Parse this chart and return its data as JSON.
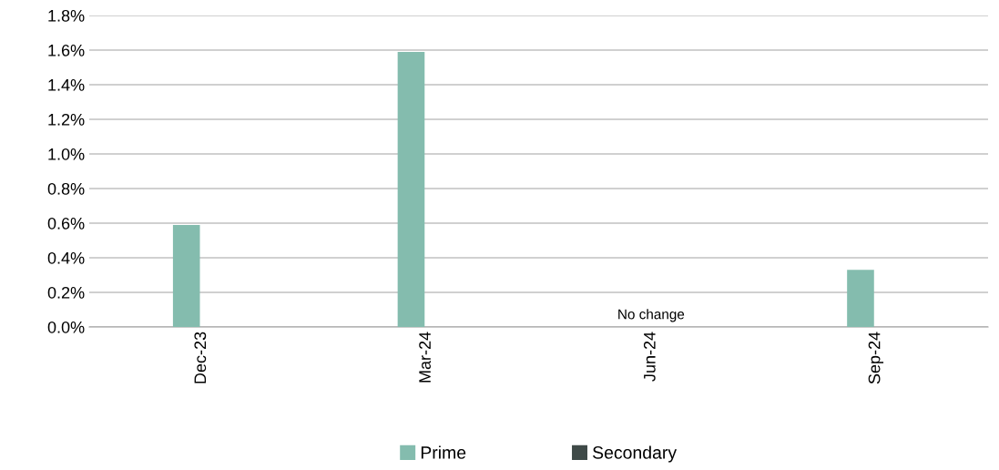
{
  "chart_data": {
    "type": "bar",
    "categories": [
      "Dec-23",
      "Mar-24",
      "Jun-24",
      "Sep-24"
    ],
    "series": [
      {
        "name": "Prime",
        "color": "#84bcae",
        "values": [
          0.59,
          1.59,
          0,
          0.33
        ]
      },
      {
        "name": "Secondary",
        "color": "#3f4a48",
        "values": [
          0,
          0,
          0,
          0
        ]
      }
    ],
    "ylim": [
      0,
      1.8
    ],
    "yticks": [
      {
        "value": 0,
        "label": "0.0%"
      },
      {
        "value": 0.2,
        "label": "0.2%"
      },
      {
        "value": 0.4,
        "label": "0.4%"
      },
      {
        "value": 0.6,
        "label": "0.6%"
      },
      {
        "value": 0.8,
        "label": "0.8%"
      },
      {
        "value": 1.0,
        "label": "1.0%"
      },
      {
        "value": 1.2,
        "label": "1.2%"
      },
      {
        "value": 1.4,
        "label": "1.4%"
      },
      {
        "value": 1.6,
        "label": "1.6%"
      },
      {
        "value": 1.8,
        "label": "1.8%"
      }
    ],
    "annotations": [
      {
        "text": "No change",
        "x": "Jun-24",
        "y": 0
      }
    ],
    "grid": "y",
    "legend": "bottom"
  }
}
